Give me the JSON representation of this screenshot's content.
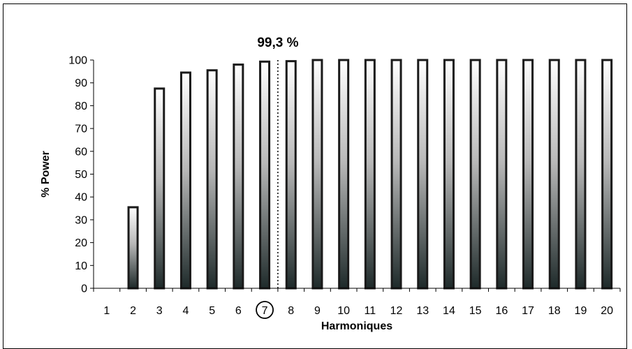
{
  "chart_data": {
    "type": "bar",
    "categories": [
      "1",
      "2",
      "3",
      "4",
      "5",
      "6",
      "7",
      "8",
      "9",
      "10",
      "11",
      "12",
      "13",
      "14",
      "15",
      "16",
      "17",
      "18",
      "19",
      "20"
    ],
    "values": [
      0,
      35.5,
      87.5,
      94.5,
      95.5,
      98,
      99.3,
      99.5,
      100,
      100,
      100,
      100,
      100,
      100,
      100,
      100,
      100,
      100,
      100,
      100
    ],
    "title": "",
    "xlabel": "Harmoniques",
    "ylabel": "% Power",
    "ylim": [
      0,
      100
    ],
    "yticks": [
      "0",
      "10",
      "20",
      "30",
      "40",
      "50",
      "60",
      "70",
      "80",
      "90",
      "100"
    ],
    "grid": false,
    "annotation": {
      "text": "99,3 %",
      "after_category": "7",
      "circled_category": "7",
      "line_style": "dotted"
    },
    "colors": {
      "bar_border": "#1a1a1a",
      "bar_fill_top": "#ffffff",
      "bar_fill_bottom": "#1e2a2a",
      "axis": "#000000"
    }
  }
}
